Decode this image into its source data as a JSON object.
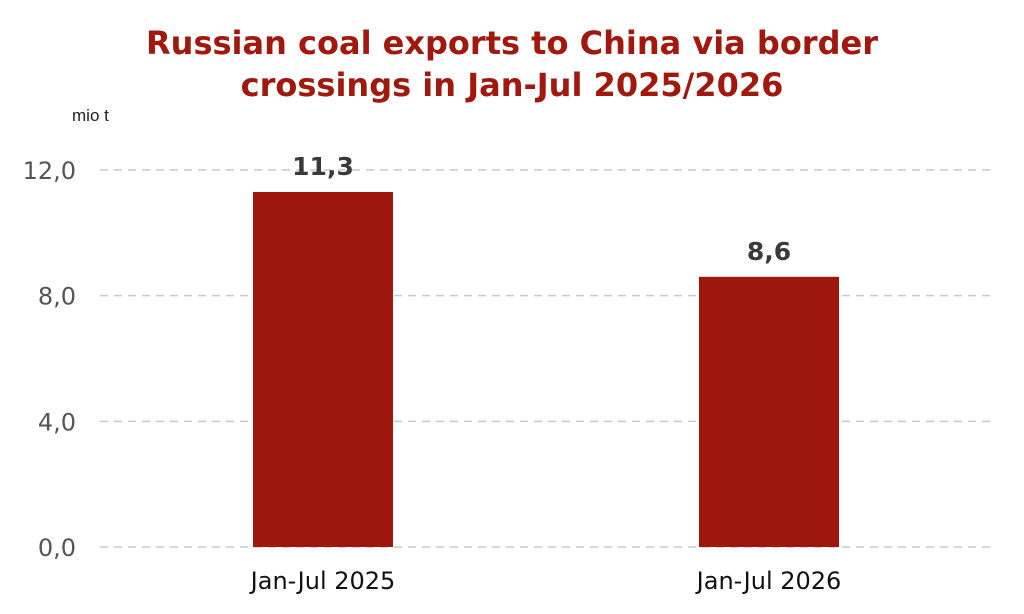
{
  "chart_data": {
    "type": "bar",
    "title_line1": "Russian coal exports to China via border",
    "title_line2": "crossings in Jan-Jul 2025/2026",
    "unit_label": "mio t",
    "categories": [
      "Jan-Jul 2025",
      "Jan-Jul 2026"
    ],
    "values": [
      11.3,
      8.6
    ],
    "value_labels": [
      "11,3",
      "8,6"
    ],
    "yticks": [
      0,
      4,
      8,
      12
    ],
    "ytick_labels": [
      "0,0",
      "4,0",
      "8,0",
      "12,0"
    ],
    "ylim": [
      0,
      12
    ],
    "grid": true,
    "bar_color": "#9e170c",
    "title_color": "#a0180e"
  }
}
